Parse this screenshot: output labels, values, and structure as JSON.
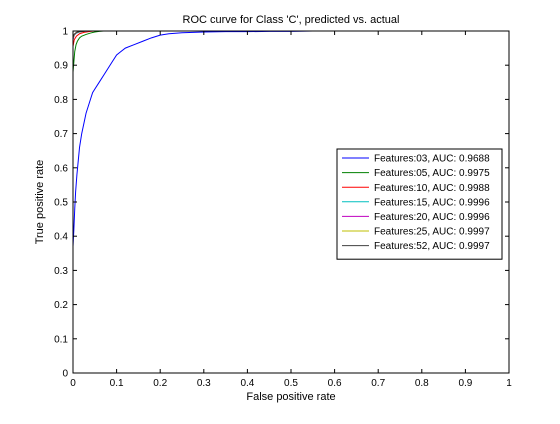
{
  "chart_data": {
    "type": "line",
    "title": "ROC curve for Class 'C', predicted vs. actual",
    "xlabel": "False positive rate",
    "ylabel": "True positive rate",
    "xlim": [
      0,
      1
    ],
    "ylim": [
      0,
      1
    ],
    "xticks": [
      "0",
      "0.1",
      "0.2",
      "0.3",
      "0.4",
      "0.5",
      "0.6",
      "0.7",
      "0.8",
      "0.9",
      "1"
    ],
    "yticks": [
      "0",
      "0.1",
      "0.2",
      "0.3",
      "0.4",
      "0.5",
      "0.6",
      "0.7",
      "0.8",
      "0.9",
      "1"
    ],
    "grid": false,
    "legend_position": "right",
    "series": [
      {
        "name": "Features:03, AUC: 0.9688",
        "color": "#0000ff",
        "x": [
          0.0,
          0.002,
          0.004,
          0.006,
          0.009,
          0.012,
          0.015,
          0.02,
          0.025,
          0.03,
          0.035,
          0.04,
          0.045,
          0.05,
          0.06,
          0.07,
          0.08,
          0.09,
          0.1,
          0.11,
          0.12,
          0.14,
          0.16,
          0.18,
          0.2,
          0.22,
          0.25,
          0.3,
          0.35,
          0.4,
          0.45,
          0.5,
          0.55
        ],
        "y": [
          0.37,
          0.42,
          0.48,
          0.53,
          0.58,
          0.62,
          0.66,
          0.7,
          0.73,
          0.76,
          0.78,
          0.8,
          0.82,
          0.83,
          0.85,
          0.87,
          0.89,
          0.91,
          0.93,
          0.94,
          0.95,
          0.96,
          0.97,
          0.98,
          0.988,
          0.992,
          0.995,
          0.997,
          0.998,
          0.998,
          0.999,
          0.999,
          1.0
        ]
      },
      {
        "name": "Features:05, AUC: 0.9975",
        "color": "#008000",
        "x": [
          0.0,
          0.002,
          0.004,
          0.007,
          0.01,
          0.015,
          0.02,
          0.03,
          0.04,
          0.05,
          0.06,
          0.07
        ],
        "y": [
          0.88,
          0.91,
          0.94,
          0.96,
          0.97,
          0.98,
          0.985,
          0.99,
          0.994,
          0.997,
          0.999,
          1.0
        ]
      },
      {
        "name": "Features:10, AUC: 0.9988",
        "color": "#ff0000",
        "x": [
          0.0,
          0.003,
          0.008,
          0.015,
          0.025,
          0.04,
          0.05
        ],
        "y": [
          0.955,
          0.975,
          0.985,
          0.992,
          0.996,
          0.999,
          1.0
        ]
      },
      {
        "name": "Features:15, AUC: 0.9996",
        "color": "#00bfbf",
        "x": [
          0.0,
          0.003,
          0.008,
          0.015,
          0.025,
          0.035
        ],
        "y": [
          0.975,
          0.988,
          0.994,
          0.997,
          0.999,
          1.0
        ]
      },
      {
        "name": "Features:20, AUC: 0.9996",
        "color": "#bf00bf",
        "x": [
          0.0,
          0.003,
          0.008,
          0.015,
          0.025,
          0.035
        ],
        "y": [
          0.976,
          0.989,
          0.995,
          0.998,
          0.999,
          1.0
        ]
      },
      {
        "name": "Features:25, AUC: 0.9997",
        "color": "#bfbf00",
        "x": [
          0.0,
          0.003,
          0.008,
          0.015,
          0.025,
          0.03
        ],
        "y": [
          0.98,
          0.99,
          0.996,
          0.998,
          0.999,
          1.0
        ]
      },
      {
        "name": "Features:52, AUC: 0.9997",
        "color": "#404040",
        "x": [
          0.0,
          0.003,
          0.008,
          0.015,
          0.025,
          0.03
        ],
        "y": [
          0.982,
          0.991,
          0.996,
          0.998,
          0.999,
          1.0
        ]
      }
    ]
  }
}
